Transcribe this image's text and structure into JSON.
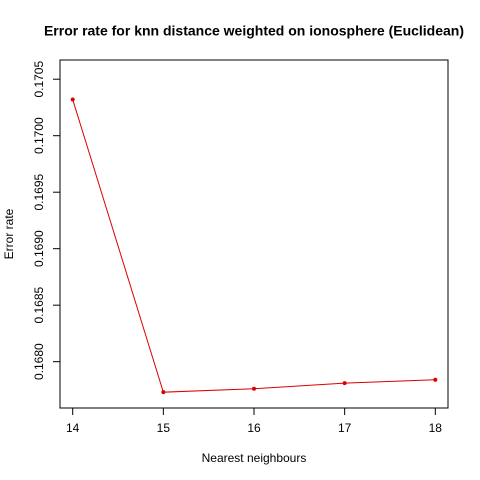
{
  "chart_data": {
    "type": "line",
    "title": "Error rate for knn distance weighted on ionosphere (Euclidean)",
    "xlabel": "Nearest neighbours",
    "ylabel": "Error rate",
    "x": [
      14,
      15,
      16,
      17,
      18
    ],
    "series": [
      {
        "name": "Error rate",
        "color": "#dd0000",
        "values": [
          0.17032,
          0.16773,
          0.16776,
          0.16781,
          0.16784
        ]
      }
    ],
    "xlim": [
      13.86,
      18.14
    ],
    "xticks": [
      14,
      15,
      16,
      17,
      18
    ],
    "ylim": [
      0.16759,
      0.17067
    ],
    "yticks": [
      {
        "value": 0.168,
        "label": "0.1680"
      },
      {
        "value": 0.1685,
        "label": "0.1685"
      },
      {
        "value": 0.169,
        "label": "0.1690"
      },
      {
        "value": 0.1695,
        "label": "0.1695"
      },
      {
        "value": 0.17,
        "label": "0.1700"
      },
      {
        "value": 0.1705,
        "label": "0.1705"
      }
    ]
  }
}
